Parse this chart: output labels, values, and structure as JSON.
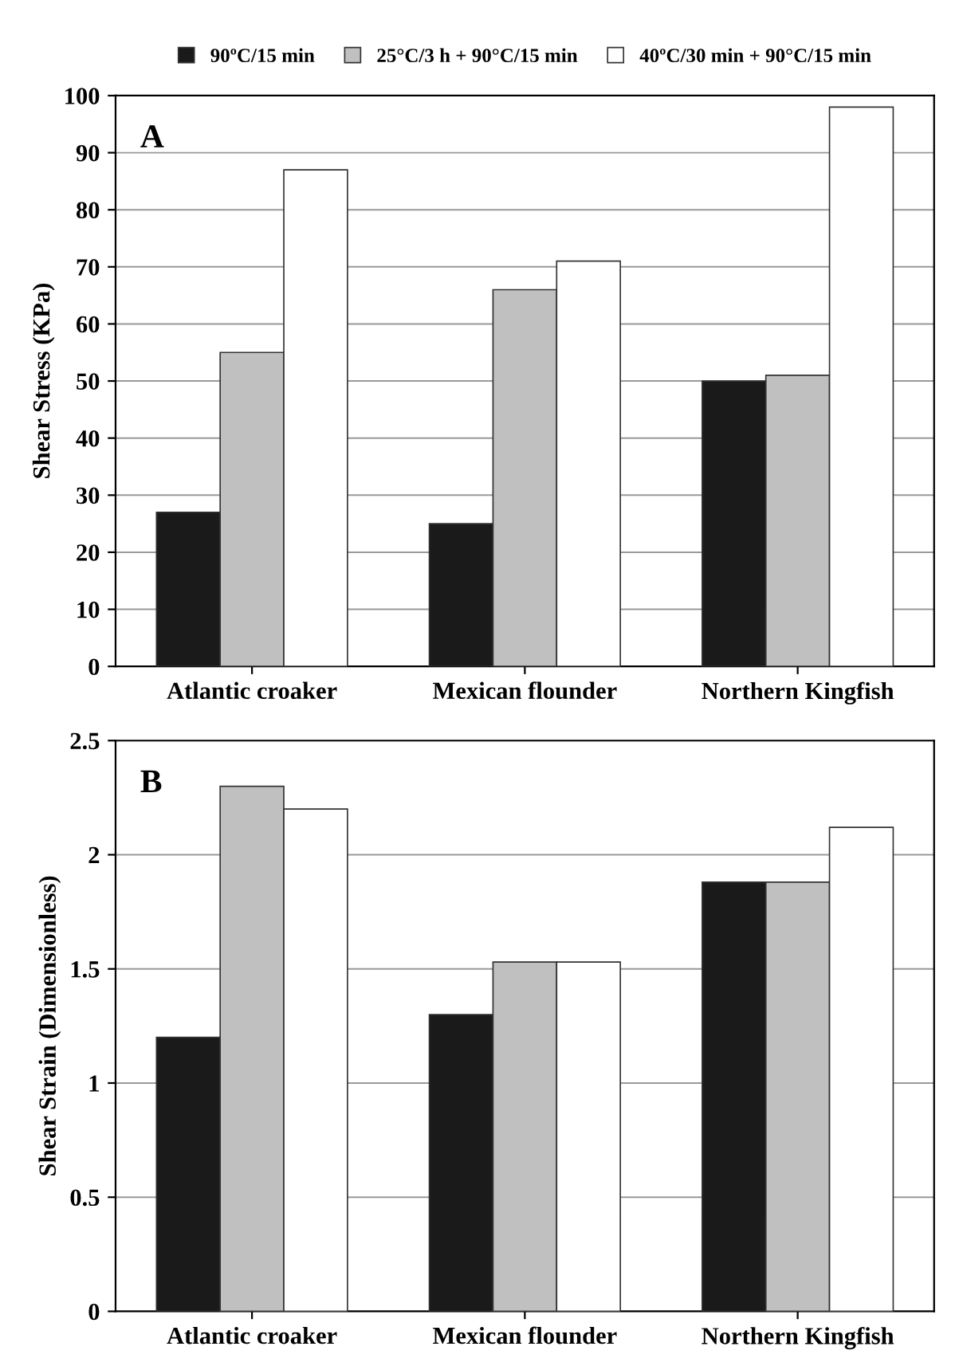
{
  "chart_data": [
    {
      "type": "bar",
      "categories": [
        "Atlantic croaker",
        "Mexican flounder",
        "Northern Kingfish"
      ],
      "ylabel": "Shear Stress (KPa)",
      "annotations": [
        "A"
      ],
      "ylim": [
        0,
        100
      ],
      "yticks": [
        0,
        10,
        20,
        30,
        40,
        50,
        60,
        70,
        80,
        90,
        100
      ],
      "grid": "y",
      "legend": "top",
      "series": [
        {
          "name": "90ºC/15 min",
          "color": "#1a1a1a",
          "values": [
            27,
            25,
            50
          ]
        },
        {
          "name": "25°C/3 h + 90°C/15 min",
          "color": "#c0c0c0",
          "values": [
            55,
            66,
            51
          ]
        },
        {
          "name": "40ºC/30 min + 90°C/15 min",
          "color": "#ffffff",
          "values": [
            87,
            71,
            98
          ]
        }
      ]
    },
    {
      "type": "bar",
      "categories": [
        "Atlantic croaker",
        "Mexican flounder",
        "Northern Kingfish"
      ],
      "ylabel": "Shear Strain (Dimensionless)",
      "annotations": [
        "B"
      ],
      "ylim": [
        0,
        2.5
      ],
      "yticks": [
        0,
        0.5,
        1,
        1.5,
        2,
        2.5
      ],
      "grid": "y",
      "series": [
        {
          "color": "#1a1a1a",
          "values": [
            1.2,
            1.3,
            1.88
          ]
        },
        {
          "color": "#c0c0c0",
          "values": [
            2.3,
            1.53,
            1.88
          ]
        },
        {
          "color": "#ffffff",
          "values": [
            2.2,
            1.53,
            2.12
          ]
        }
      ]
    }
  ]
}
